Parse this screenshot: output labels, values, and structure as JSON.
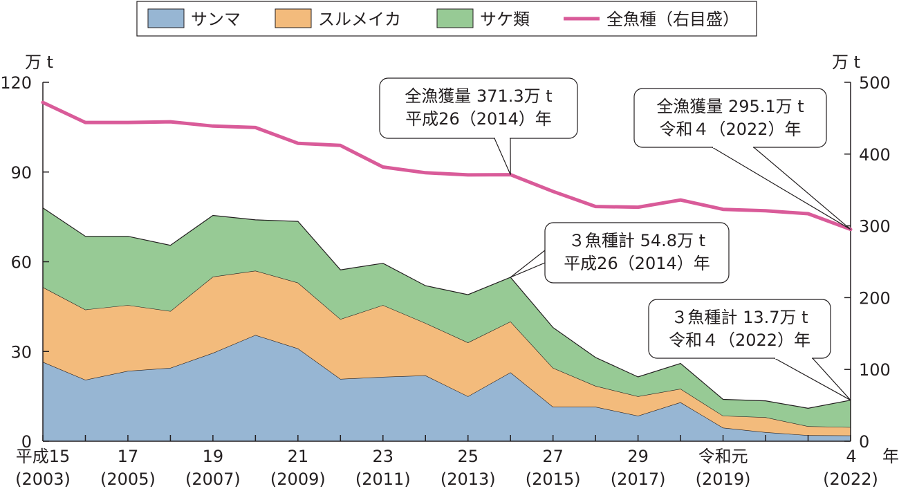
{
  "chart_data": {
    "type": "area",
    "x": [
      2003,
      2004,
      2005,
      2006,
      2007,
      2008,
      2009,
      2010,
      2011,
      2012,
      2013,
      2014,
      2015,
      2016,
      2017,
      2018,
      2019,
      2020,
      2021,
      2022
    ],
    "x_tick_labels": [
      {
        "x": 2003,
        "era": "平成15",
        "year": "(2003)"
      },
      {
        "x": 2005,
        "era": "17",
        "year": "(2005)"
      },
      {
        "x": 2007,
        "era": "19",
        "year": "(2007)"
      },
      {
        "x": 2009,
        "era": "21",
        "year": "(2009)"
      },
      {
        "x": 2011,
        "era": "23",
        "year": "(2011)"
      },
      {
        "x": 2013,
        "era": "25",
        "year": "(2013)"
      },
      {
        "x": 2015,
        "era": "27",
        "year": "(2015)"
      },
      {
        "x": 2017,
        "era": "29",
        "year": "(2017)"
      },
      {
        "x": 2019,
        "era": "令和元",
        "year": "(2019)"
      },
      {
        "x": 2022,
        "era": "4",
        "year": "(2022)"
      }
    ],
    "x_unit": "年",
    "series": [
      {
        "name": "サンマ",
        "axis": "left",
        "stack": true,
        "color": "#97b6d3",
        "values": [
          26.5,
          20.5,
          23.5,
          24.5,
          29.5,
          35.5,
          31.0,
          20.8,
          21.5,
          22.0,
          15.0,
          23.0,
          11.5,
          11.5,
          8.5,
          13.0,
          4.5,
          3.0,
          2.0,
          1.9
        ]
      },
      {
        "name": "スルメイカ",
        "axis": "left",
        "stack": true,
        "color": "#f3bb7c",
        "values": [
          25.0,
          23.5,
          22.0,
          19.0,
          25.5,
          21.5,
          22.0,
          20.0,
          24.0,
          17.5,
          18.0,
          17.0,
          13.0,
          7.0,
          6.5,
          4.5,
          4.0,
          5.0,
          3.0,
          2.8
        ]
      },
      {
        "name": "サケ類",
        "axis": "left",
        "stack": true,
        "color": "#97ca95",
        "values": [
          26.5,
          24.5,
          23.0,
          22.0,
          20.5,
          17.0,
          20.5,
          16.5,
          14.0,
          12.5,
          16.0,
          14.8,
          13.5,
          9.5,
          6.5,
          8.5,
          5.5,
          5.5,
          6.0,
          9.0
        ]
      },
      {
        "name": "全魚種（右目盛）",
        "axis": "right",
        "stack": false,
        "color": "#d95b99",
        "values": [
          472,
          444,
          444,
          445,
          439,
          437,
          415,
          412,
          382,
          374,
          371,
          371.3,
          348,
          327,
          326,
          336,
          323,
          321,
          317,
          295.1
        ]
      }
    ],
    "left_axis": {
      "unit": "万 t",
      "min": 0,
      "max": 120,
      "ticks": [
        0,
        30,
        60,
        90,
        120
      ]
    },
    "right_axis": {
      "unit": "万 t",
      "min": 0,
      "max": 500,
      "ticks": [
        0,
        100,
        200,
        300,
        400,
        500
      ]
    },
    "legend_position": "top-center",
    "annotations": [
      {
        "lines": [
          "全漁獲量 371.3万 t",
          "平成26（2014）年"
        ],
        "target_x": 2014,
        "target_series": "全魚種（右目盛）"
      },
      {
        "lines": [
          "全漁獲量 295.1万 t",
          "令和４（2022）年"
        ],
        "target_x": 2022,
        "target_series": "全魚種（右目盛）"
      },
      {
        "lines": [
          "３魚種計 54.8万 t",
          "平成26（2014）年"
        ],
        "target_x": 2014,
        "target_series": "stack-total"
      },
      {
        "lines": [
          "３魚種計 13.7万 t",
          "令和４（2022）年"
        ],
        "target_x": 2022,
        "target_series": "stack-total"
      }
    ]
  }
}
